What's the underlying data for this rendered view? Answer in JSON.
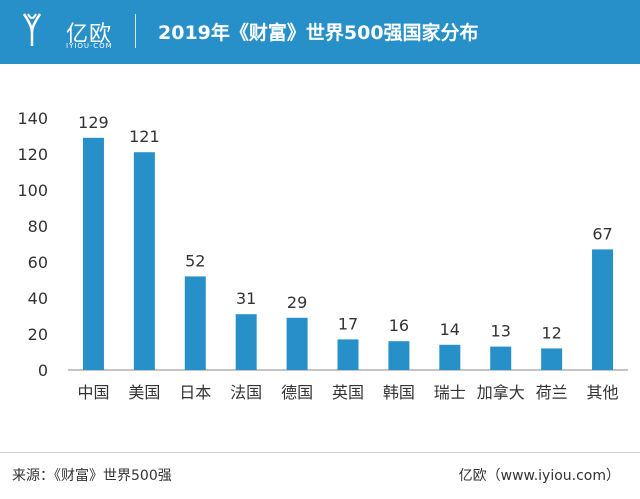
{
  "header": {
    "brand": "亿欧",
    "brand_sub": "IYIOU·COM",
    "title": "2019年《财富》世界500强国家分布"
  },
  "colors": {
    "header_bg": "#2790c8",
    "bar": "#2790c8",
    "axis": "#888888",
    "text": "#333333"
  },
  "chart_data": {
    "type": "bar",
    "categories": [
      "中国",
      "美国",
      "日本",
      "法国",
      "德国",
      "英国",
      "韩国",
      "瑞士",
      "加拿大",
      "荷兰",
      "其他"
    ],
    "values": [
      129,
      121,
      52,
      31,
      29,
      17,
      16,
      14,
      13,
      12,
      67
    ],
    "data_labels": [
      "129",
      "121",
      "52",
      "31",
      "29",
      "17",
      "16",
      "14",
      "13",
      "12",
      "67"
    ],
    "y_ticks": [
      "0",
      "20",
      "40",
      "60",
      "80",
      "100",
      "120",
      "140"
    ],
    "ylim": [
      0,
      140
    ],
    "grid": false,
    "legend": "none",
    "title": "",
    "xlabel": "",
    "ylabel": ""
  },
  "footer": {
    "source": "来源：《财富》世界500强",
    "credit": "亿欧（www.iyiou.com）"
  }
}
